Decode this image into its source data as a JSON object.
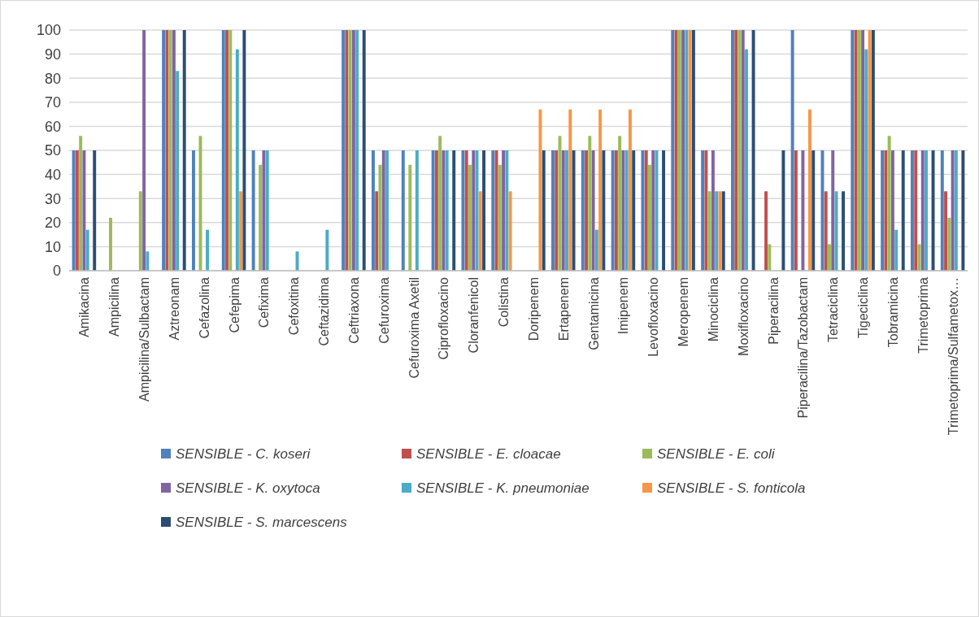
{
  "chart_data": {
    "type": "bar",
    "categories": [
      "Amikacina",
      "Ampicilina",
      "Ampicilina/Sulbactam",
      "Aztreonam",
      "Cefazolina",
      "Cefepima",
      "Cefixima",
      "Cefoxitina",
      "Ceftazidima",
      "Ceftriaxona",
      "Cefuroxima",
      "Cefuroxima Axetil",
      "Ciprofloxacino",
      "Cloranfenicol",
      "Colistina",
      "Doripenem",
      "Ertapenem",
      "Gentamicina",
      "Imipenem",
      "Levofloxacino",
      "Meropenem",
      "Minociclina",
      "Moxifloxacino",
      "Piperacilina",
      "Piperacilina/Tazobactam",
      "Tetraciclina",
      "Tigeciclina",
      "Tobramicina",
      "Trimetoprima",
      "Trimetoprima/Sulfametox…"
    ],
    "series": [
      {
        "name": "SENSIBLE - C. koseri",
        "color": "#4f81bd",
        "values": [
          50,
          0,
          0,
          100,
          50,
          100,
          50,
          0,
          0,
          100,
          50,
          50,
          50,
          50,
          50,
          0,
          50,
          50,
          50,
          50,
          100,
          50,
          100,
          0,
          100,
          50,
          100,
          50,
          50,
          50
        ]
      },
      {
        "name": "SENSIBLE - E. cloacae",
        "color": "#c0504d",
        "values": [
          50,
          0,
          0,
          100,
          0,
          100,
          0,
          0,
          0,
          100,
          33,
          0,
          50,
          50,
          50,
          0,
          50,
          50,
          50,
          50,
          100,
          50,
          100,
          33,
          50,
          33,
          100,
          50,
          50,
          33
        ]
      },
      {
        "name": "SENSIBLE - E. coli",
        "color": "#9bbb59",
        "values": [
          56,
          22,
          33,
          100,
          56,
          100,
          44,
          0,
          0,
          100,
          44,
          44,
          56,
          44,
          44,
          0,
          56,
          56,
          56,
          44,
          100,
          33,
          100,
          11,
          0,
          11,
          100,
          56,
          11,
          22
        ]
      },
      {
        "name": "SENSIBLE - K. oxytoca",
        "color": "#8064a2",
        "values": [
          50,
          0,
          100,
          100,
          0,
          0,
          50,
          0,
          0,
          100,
          50,
          0,
          50,
          50,
          50,
          0,
          50,
          50,
          50,
          50,
          100,
          50,
          100,
          0,
          50,
          50,
          100,
          50,
          50,
          50
        ]
      },
      {
        "name": "SENSIBLE - K. pneumoniae",
        "color": "#4bacc6",
        "values": [
          17,
          0,
          8,
          83,
          17,
          92,
          50,
          8,
          17,
          100,
          50,
          50,
          50,
          50,
          50,
          0,
          50,
          17,
          50,
          50,
          100,
          33,
          92,
          0,
          0,
          33,
          92,
          17,
          50,
          50
        ]
      },
      {
        "name": "SENSIBLE - S. fonticola",
        "color": "#f79646",
        "values": [
          0,
          0,
          0,
          0,
          0,
          33,
          0,
          0,
          0,
          0,
          0,
          0,
          0,
          33,
          33,
          67,
          67,
          67,
          67,
          0,
          100,
          33,
          0,
          0,
          67,
          0,
          100,
          0,
          0,
          0
        ]
      },
      {
        "name": "SENSIBLE - S. marcescens",
        "color": "#2c4d75",
        "values": [
          50,
          0,
          0,
          100,
          0,
          100,
          0,
          0,
          0,
          100,
          0,
          0,
          50,
          50,
          0,
          50,
          50,
          50,
          50,
          50,
          100,
          33,
          100,
          50,
          50,
          33,
          100,
          50,
          50,
          50
        ]
      }
    ],
    "ylim": [
      0,
      100
    ],
    "yticks": [
      0,
      10,
      20,
      30,
      40,
      50,
      60,
      70,
      80,
      90,
      100
    ],
    "grid": "y",
    "legend": "bottom"
  }
}
